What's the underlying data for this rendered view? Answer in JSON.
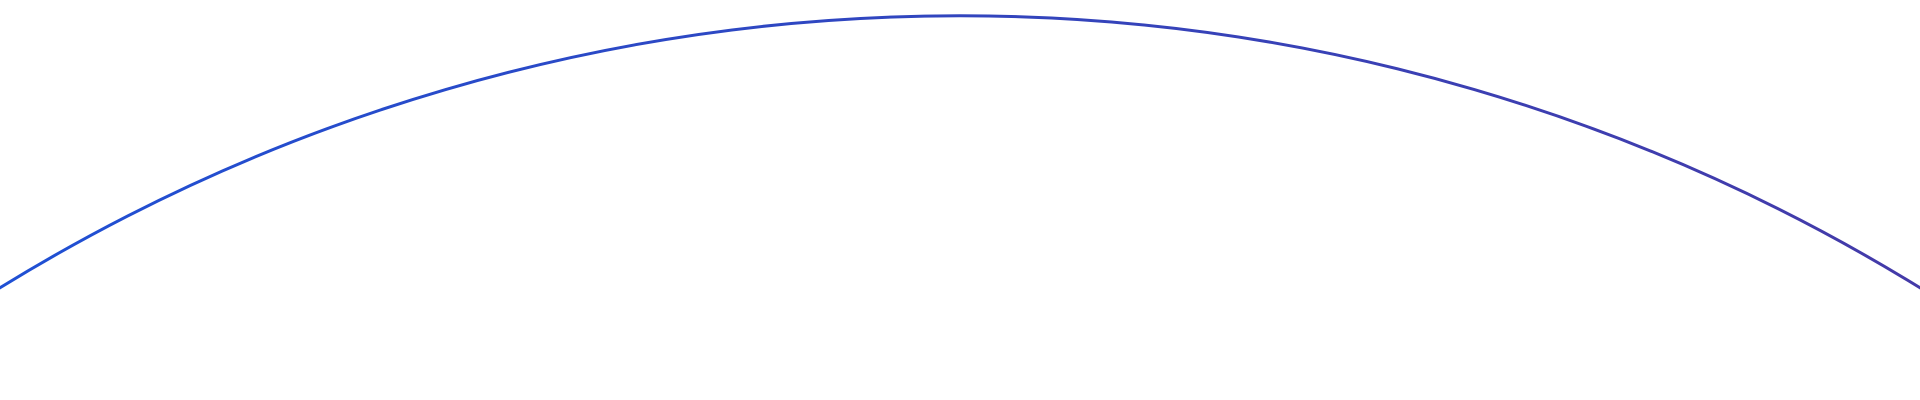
{
  "decoration": {
    "arc": {
      "gradient_start_color": "#1f50d4",
      "gradient_end_color": "#443aa8"
    }
  }
}
